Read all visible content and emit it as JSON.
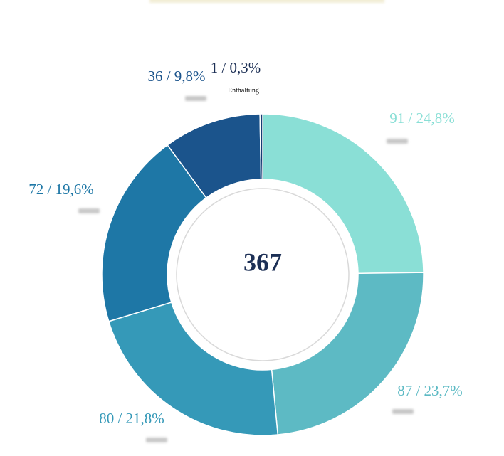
{
  "chart_data": {
    "type": "pie",
    "donut": true,
    "total": "367",
    "slices": [
      {
        "value": 91,
        "label": "91 / 24,8%",
        "category": "",
        "color": "#8ADFD6"
      },
      {
        "value": 87,
        "label": "87 / 23,7%",
        "category": "",
        "color": "#5DBAC4"
      },
      {
        "value": 80,
        "label": "80 / 21,8%",
        "category": "",
        "color": "#3599B8"
      },
      {
        "value": 72,
        "label": "72 / 19,6%",
        "category": "",
        "color": "#1E77A6"
      },
      {
        "value": 36,
        "label": "36 / 9,8%",
        "category": "",
        "color": "#1B548C"
      },
      {
        "value": 1,
        "label": "1 / 0,3%",
        "category": "Enthaltung",
        "color": "#163E73"
      }
    ],
    "colors": {
      "text_dark": "#1c2f55",
      "ring": "#d9d9d9"
    }
  }
}
